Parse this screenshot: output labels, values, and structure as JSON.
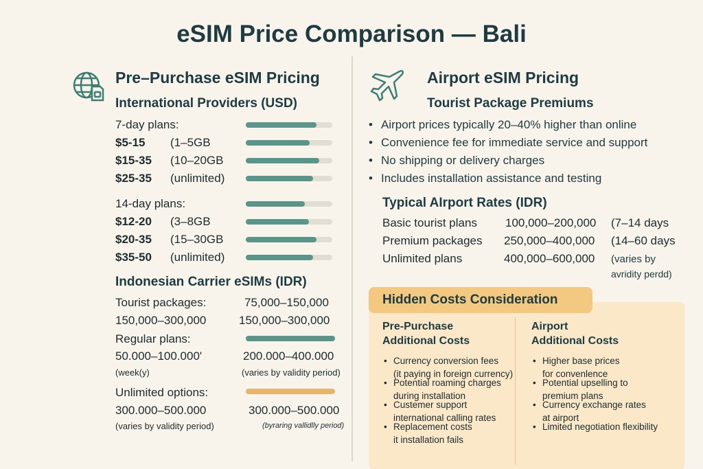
{
  "title": "eSIM Price Comparison — Bali",
  "left": {
    "heading": "Pre–Purchase eSIM Pricing",
    "intl": {
      "heading": "International Providers (USD)",
      "groups": [
        {
          "label": "7-day plans:",
          "label_fill": 0.82,
          "rows": [
            {
              "price": "$5-15",
              "data": "(1–5GB",
              "fill": 0.74
            },
            {
              "price": "$15-35",
              "data": "(10–20GB",
              "fill": 0.85
            },
            {
              "price": "$25-35",
              "data": "(unlimited)",
              "fill": 0.78
            }
          ]
        },
        {
          "label": "14-day plans:",
          "label_fill": 0.68,
          "rows": [
            {
              "price": "$12-20",
              "data": "(3–8GB",
              "fill": 0.73
            },
            {
              "price": "$20-35",
              "data": "(15–30GB",
              "fill": 0.82
            },
            {
              "price": "$35-50",
              "data": "(unlimited)",
              "fill": 0.78
            }
          ]
        }
      ]
    },
    "carrier": {
      "heading": "Indonesian Carrier eSIMs (IDR)",
      "tourist_label": "Tourist packages:",
      "tourist_val": "75,000–150,000",
      "row2_a": "150,000–300,000",
      "row2_b": "150,000–300,000",
      "regular_label": "Regular plans:",
      "regular_fill": 1.0,
      "regular_a": "50.000–100.000'",
      "regular_b": "200.000–400.000",
      "regular_a_sub": "(week(y)",
      "regular_b_sub": "(varies by validity period)",
      "unlimited_label": "Unlimited options:",
      "unlimited_fill": 1.0,
      "unlimited_a": "300.000–500.000",
      "unlimited_b": "300.000–500.000",
      "unlimited_a_sub": "(varies by validity period)",
      "unlimited_b_sub": "(byraring vallidlly period)"
    }
  },
  "right": {
    "heading": "Airport eSIM Pricing",
    "subheading": "Tourist Package Premiums",
    "bullets": [
      "Airport prices typically 20–40% higher than online",
      "Convenience fee for immediate service and support",
      "No shipping or delivery charges",
      "Includes installation assistance and testing"
    ],
    "rates": {
      "heading": "Typical AIrport Rates (IDR)",
      "rows": [
        {
          "name": "Basic tourist plans",
          "price": "100,000–200,000",
          "note": "(7–14 days"
        },
        {
          "name": "Premium packages",
          "price": "250,000–400,000",
          "note": "(14–60 days"
        },
        {
          "name": "Unlimited plans",
          "price": "400,000–600,000",
          "note": "(varies by"
        }
      ],
      "note_cont": "avridity perdd)"
    }
  },
  "hidden": {
    "heading": "Hidden Costs Consideration",
    "pre": {
      "title1": "Pre-Purchase",
      "title2": "Additional Costs",
      "items": [
        [
          "Currency conversion fees",
          "(it paying in foreign currency)"
        ],
        [
          "Potential roaming charges",
          "during installation"
        ],
        [
          "Custemer support",
          "international calling rates"
        ],
        [
          "Replacement costs",
          "it installation fails"
        ]
      ]
    },
    "airport": {
      "title1": "Airport",
      "title2": "Additional Costs",
      "items": [
        [
          "Higher base prices",
          "for convenlence"
        ],
        [
          "Potential upselling to",
          "premium plans"
        ],
        [
          "Currency exchange rates",
          "at airport"
        ],
        [
          "Limited negotiation flexibility",
          ""
        ]
      ]
    }
  },
  "icons": [
    "globe-sim-icon",
    "airplane-icon"
  ],
  "colors": {
    "accent": "#5a9589",
    "orange": "#e8b46a",
    "panel": "#fbe8c9",
    "text": "#1d3b40"
  }
}
